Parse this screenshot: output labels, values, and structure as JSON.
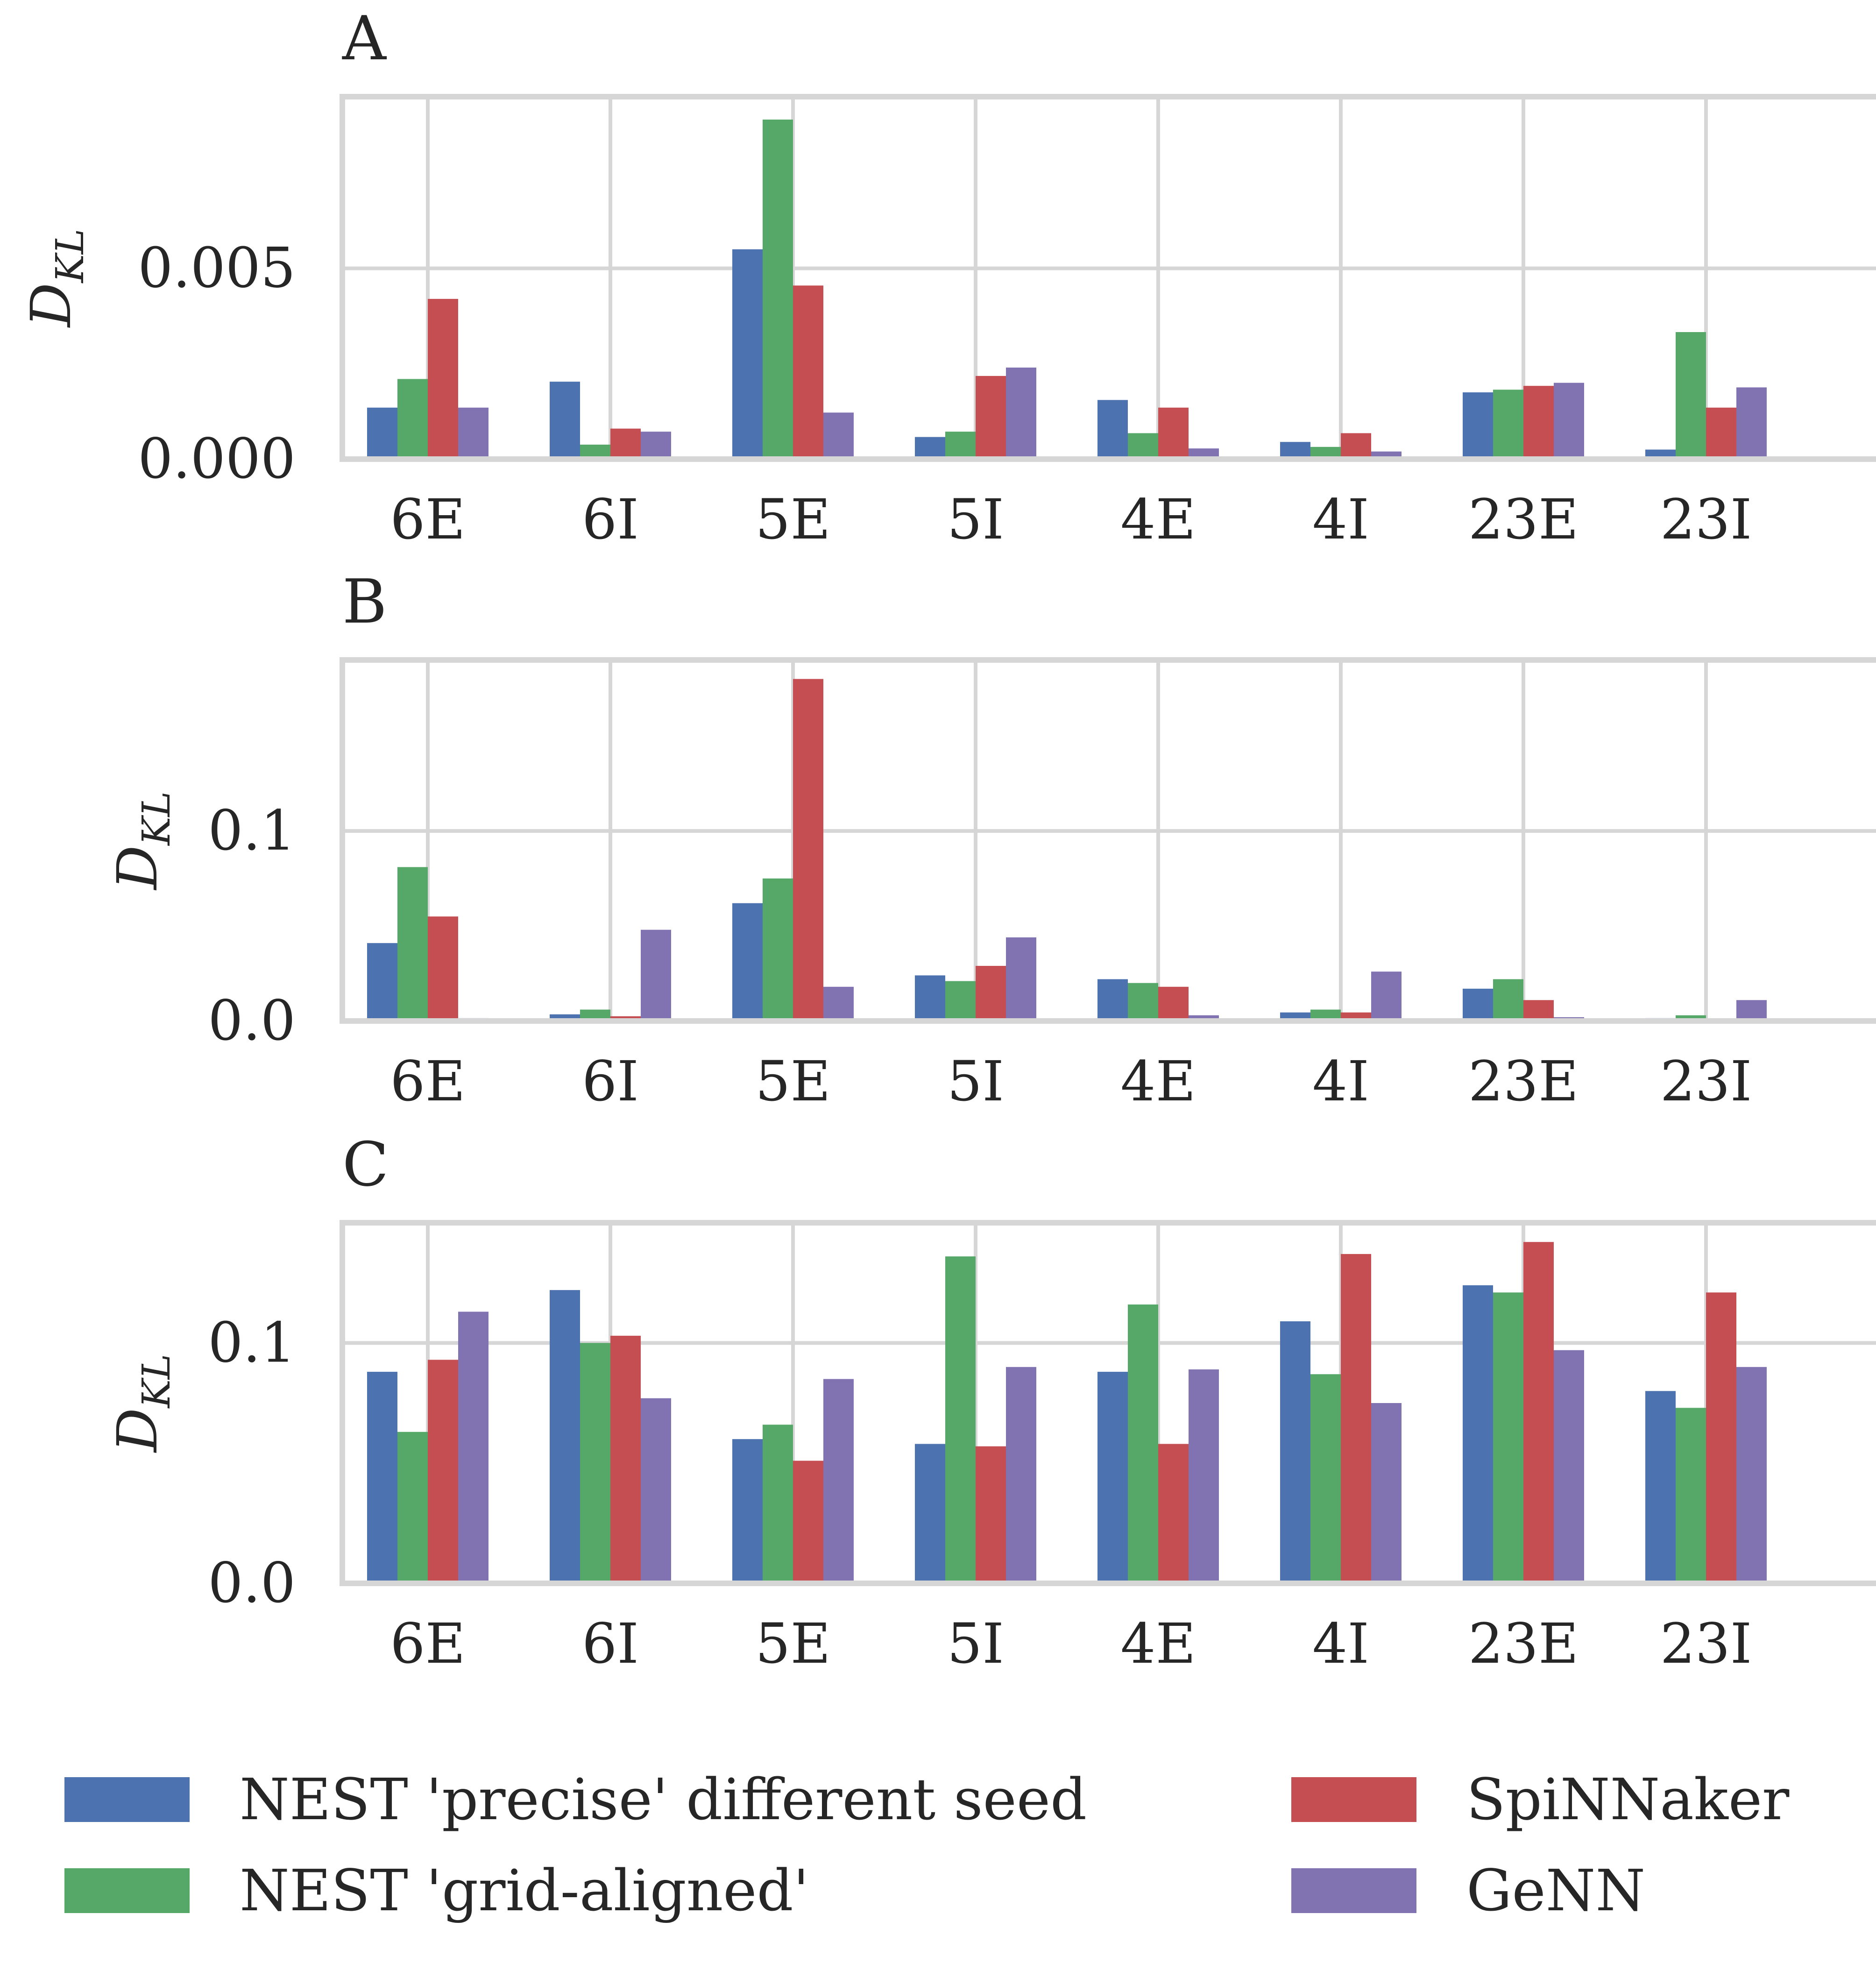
{
  "legend": [
    {
      "name": "NEST 'precise' different seed",
      "color": "#4c72b0"
    },
    {
      "name": "NEST 'grid-aligned'",
      "color": "#55a868"
    },
    {
      "name": "SpiNNaker",
      "color": "#c44e52"
    },
    {
      "name": "GeNN",
      "color": "#8172b2"
    }
  ],
  "chart_data": [
    {
      "type": "bar",
      "panel_label": "A",
      "ylabel_main": "D",
      "ylabel_sub": "KL",
      "categories": [
        "6E",
        "6I",
        "5E",
        "5I",
        "4E",
        "4I",
        "23E",
        "23I"
      ],
      "ylim": [
        0,
        0.0095
      ],
      "yticks": [
        0.0,
        0.005
      ],
      "ytick_labels": [
        "0.000",
        "0.005"
      ],
      "grid": true,
      "series": [
        {
          "name": "NEST 'precise' different seed",
          "color": "#4c72b0",
          "values": [
            0.00135,
            0.00203,
            0.0055,
            0.00058,
            0.00155,
            0.00045,
            0.00175,
            0.00025
          ]
        },
        {
          "name": "NEST 'grid-aligned'",
          "color": "#55a868",
          "values": [
            0.0021,
            0.00038,
            0.0089,
            0.00072,
            0.00068,
            0.00032,
            0.00182,
            0.00333
          ]
        },
        {
          "name": "SpiNNaker",
          "color": "#c44e52",
          "values": [
            0.0042,
            0.0008,
            0.00455,
            0.00218,
            0.00135,
            0.00068,
            0.00192,
            0.00135
          ]
        },
        {
          "name": "GeNN",
          "color": "#8172b2",
          "values": [
            0.00135,
            0.00072,
            0.00122,
            0.0024,
            0.00028,
            0.0002,
            0.002,
            0.00188
          ]
        }
      ]
    },
    {
      "type": "bar",
      "panel_label": "B",
      "ylabel_main": "D",
      "ylabel_sub": "KL",
      "categories": [
        "6E",
        "6I",
        "5E",
        "5I",
        "4E",
        "4I",
        "23E",
        "23I"
      ],
      "ylim": [
        0,
        0.19
      ],
      "yticks": [
        0.0,
        0.1
      ],
      "ytick_labels": [
        "0.0",
        "0.1"
      ],
      "grid": true,
      "series": [
        {
          "name": "NEST 'precise' different seed",
          "color": "#4c72b0",
          "values": [
            0.041,
            0.0035,
            0.062,
            0.024,
            0.022,
            0.0045,
            0.017,
            0.0015
          ]
        },
        {
          "name": "NEST 'grid-aligned'",
          "color": "#55a868",
          "values": [
            0.081,
            0.006,
            0.075,
            0.021,
            0.02,
            0.006,
            0.022,
            0.003
          ]
        },
        {
          "name": "SpiNNaker",
          "color": "#c44e52",
          "values": [
            0.055,
            0.0025,
            0.18,
            0.029,
            0.018,
            0.0045,
            0.011,
            0.0005
          ]
        },
        {
          "name": "GeNN",
          "color": "#8172b2",
          "values": [
            0.0015,
            0.048,
            0.018,
            0.044,
            0.003,
            0.026,
            0.002,
            0.011
          ]
        }
      ]
    },
    {
      "type": "bar",
      "panel_label": "C",
      "ylabel_main": "D",
      "ylabel_sub": "KL",
      "categories": [
        "6E",
        "6I",
        "5E",
        "5I",
        "4E",
        "4I",
        "23E",
        "23I"
      ],
      "ylim": [
        0,
        0.15
      ],
      "yticks": [
        0.0,
        0.1
      ],
      "ytick_labels": [
        "0.0",
        "0.1"
      ],
      "grid": true,
      "series": [
        {
          "name": "NEST 'precise' different seed",
          "color": "#4c72b0",
          "values": [
            0.088,
            0.122,
            0.06,
            0.058,
            0.088,
            0.109,
            0.124,
            0.08
          ]
        },
        {
          "name": "NEST 'grid-aligned'",
          "color": "#55a868",
          "values": [
            0.063,
            0.1,
            0.066,
            0.136,
            0.116,
            0.087,
            0.121,
            0.073
          ]
        },
        {
          "name": "SpiNNaker",
          "color": "#c44e52",
          "values": [
            0.093,
            0.103,
            0.051,
            0.057,
            0.058,
            0.137,
            0.142,
            0.121
          ]
        },
        {
          "name": "GeNN",
          "color": "#8172b2",
          "values": [
            0.113,
            0.077,
            0.085,
            0.09,
            0.089,
            0.075,
            0.097,
            0.09
          ]
        }
      ]
    }
  ]
}
